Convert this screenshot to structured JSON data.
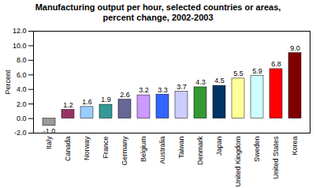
{
  "chart_data": {
    "type": "bar",
    "title": "Manufacturing output per hour, selected countries or areas, percent change, 2002-2003",
    "y_label": "Percent",
    "categories": [
      "Italy",
      "Canada",
      "Norway",
      "France",
      "Germany",
      "Belgium",
      "Australia",
      "Taiwan",
      "Denmark",
      "Japan",
      "United Kingdom",
      "Sweden",
      "United States",
      "Korea"
    ],
    "values": [
      -1.0,
      1.2,
      1.6,
      1.9,
      2.6,
      3.2,
      3.3,
      3.7,
      4.3,
      4.5,
      5.5,
      5.9,
      6.8,
      9.0
    ],
    "value_labels": [
      "-1.0",
      "1.2",
      "1.6",
      "1.9",
      "2.6",
      "3.2",
      "3.3",
      "3.7",
      "4.3",
      "4.5",
      "5.5",
      "5.9",
      "6.8",
      "9.0"
    ],
    "colors": [
      "#999999",
      "#993366",
      "#99ccff",
      "#339999",
      "#666699",
      "#cc99ff",
      "#3366ff",
      "#ccccff",
      "#339933",
      "#003366",
      "#ffff99",
      "#ccffff",
      "#ff0000",
      "#800000"
    ],
    "ylim": [
      -2,
      12
    ],
    "yticks": [
      {
        "value": -2,
        "label": "-2.0"
      },
      {
        "value": 0,
        "label": "0.0"
      },
      {
        "value": 2,
        "label": "2.0"
      },
      {
        "value": 4,
        "label": "4.0"
      },
      {
        "value": 6,
        "label": "6.0"
      },
      {
        "value": 8,
        "label": "8.0"
      },
      {
        "value": 10,
        "label": "10.0"
      },
      {
        "value": 12,
        "label": "12.0"
      }
    ],
    "grid": false,
    "data_labels": true
  }
}
